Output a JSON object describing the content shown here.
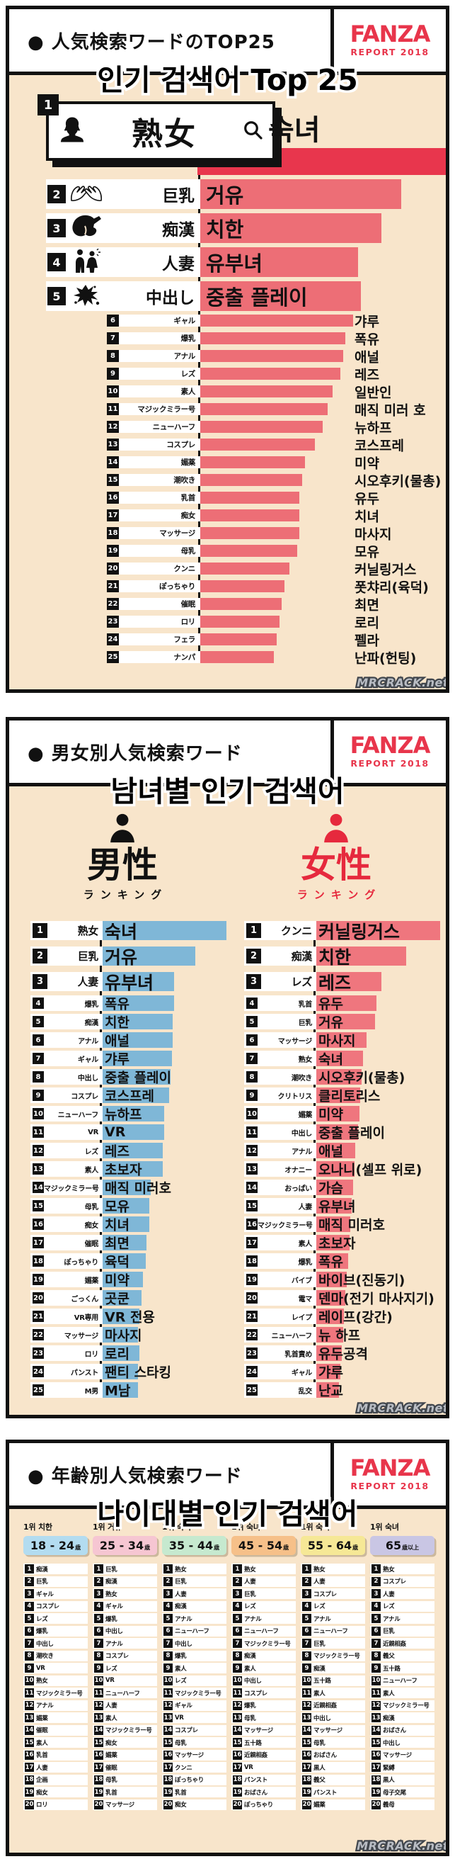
{
  "watermark": "MRCRACK.net",
  "logo": {
    "name": "FANZA",
    "report": "REPORT 2018"
  },
  "colors": {
    "panel_bg": "#f8e5cb",
    "accent_red": "#e8354b",
    "bar_salmon": "#ed6e76",
    "bar_red_dark": "#e8364d",
    "male_blue": "#7fb7d7",
    "male_blue_dark": "#3d8ec1",
    "female_red": "#ef767e",
    "female_red_dark": "#e6293d"
  },
  "panel1": {
    "header_jp": "● 人気検索ワードのTOP25",
    "title_kr": "인기 검색어 Top 25",
    "no1": {
      "rank": "1",
      "jp": "熟女",
      "kr": "숙녀"
    },
    "top_rows": [
      {
        "rank": "2",
        "jp": "巨乳",
        "kr": "거유",
        "w": 79
      },
      {
        "rank": "3",
        "jp": "痴漢",
        "kr": "치한",
        "w": 71
      },
      {
        "rank": "4",
        "jp": "人妻",
        "kr": "유부녀",
        "w": 62
      },
      {
        "rank": "5",
        "jp": "中出し",
        "kr": "중출 플레이",
        "w": 63
      }
    ],
    "rows": [
      {
        "jp": "ギャル",
        "kr": "갸루",
        "w": 60
      },
      {
        "jp": "爆乳",
        "kr": "폭유",
        "w": 57
      },
      {
        "jp": "アナル",
        "kr": "애널",
        "w": 56
      },
      {
        "jp": "レズ",
        "kr": "레즈",
        "w": 55
      },
      {
        "jp": "素人",
        "kr": "일반인",
        "w": 52
      },
      {
        "jp": "マジックミラー号",
        "kr": "매직 미러 호",
        "w": 50
      },
      {
        "jp": "ニューハーフ",
        "kr": "뉴하프",
        "w": 48
      },
      {
        "jp": "コスプレ",
        "kr": "코스프레",
        "w": 45
      },
      {
        "jp": "媚薬",
        "kr": "미약",
        "w": 41
      },
      {
        "jp": "潮吹き",
        "kr": "시오후키(물총)",
        "w": 40
      },
      {
        "jp": "乳首",
        "kr": "유두",
        "w": 39
      },
      {
        "jp": "痴女",
        "kr": "치녀",
        "w": 39
      },
      {
        "jp": "マッサージ",
        "kr": "마사지",
        "w": 39
      },
      {
        "jp": "母乳",
        "kr": "모유",
        "w": 38
      },
      {
        "jp": "クンニ",
        "kr": "커닐링거스",
        "w": 35
      },
      {
        "jp": "ぽっちゃり",
        "kr": "폿챠리(육덕)",
        "w": 33
      },
      {
        "jp": "催眠",
        "kr": "최면",
        "w": 32
      },
      {
        "jp": "ロリ",
        "kr": "로리",
        "w": 31
      },
      {
        "jp": "フェラ",
        "kr": "펠라",
        "w": 30
      },
      {
        "jp": "ナンパ",
        "kr": "난파(헌팅)",
        "w": 29
      }
    ]
  },
  "panel2": {
    "header_jp": "● 男女別人気検索ワード",
    "title_kr": "남녀별 인기 검색어",
    "male": {
      "label": "男性",
      "sub": "ランキング",
      "top_rows": [
        {
          "jp": "熟女",
          "kr": "숙녀",
          "w": 100
        },
        {
          "jp": "巨乳",
          "kr": "거유",
          "w": 75
        },
        {
          "jp": "人妻",
          "kr": "유부녀",
          "w": 58
        }
      ],
      "rows": [
        {
          "jp": "爆乳",
          "kr": "폭유",
          "w": 58
        },
        {
          "jp": "痴漢",
          "kr": "치한",
          "w": 57
        },
        {
          "jp": "アナル",
          "kr": "애널",
          "w": 57
        },
        {
          "jp": "ギャル",
          "kr": "갸루",
          "w": 56
        },
        {
          "jp": "中出し",
          "kr": "중출 플레이",
          "w": 55
        },
        {
          "jp": "コスプレ",
          "kr": "코스프레",
          "w": 54
        },
        {
          "jp": "ニューハーフ",
          "kr": "뉴하프",
          "w": 50
        },
        {
          "jp": "VR",
          "kr": "VR",
          "w": 50
        },
        {
          "jp": "レズ",
          "kr": "레즈",
          "w": 49
        },
        {
          "jp": "素人",
          "kr": "초보자",
          "w": 49
        },
        {
          "jp": "マジックミラー号",
          "kr": "매직 미러호",
          "w": 39
        },
        {
          "jp": "母乳",
          "kr": "모유",
          "w": 38
        },
        {
          "jp": "痴女",
          "kr": "치녀",
          "w": 38
        },
        {
          "jp": "催眠",
          "kr": "최면",
          "w": 36
        },
        {
          "jp": "ぽっちゃり",
          "kr": "육덕",
          "w": 35
        },
        {
          "jp": "媚薬",
          "kr": "미약",
          "w": 33
        },
        {
          "jp": "ごっくん",
          "kr": "곳쿤",
          "w": 32
        },
        {
          "jp": "VR専用",
          "kr": "VR 전용",
          "w": 30
        },
        {
          "jp": "マッサージ",
          "kr": "마사지",
          "w": 29
        },
        {
          "jp": "ロリ",
          "kr": "로리",
          "w": 30
        },
        {
          "jp": "パンスト",
          "kr": "팬티 스타킹",
          "w": 29
        },
        {
          "jp": "M男",
          "kr": "M남",
          "w": 29
        }
      ]
    },
    "female": {
      "label": "女性",
      "sub": "ランキング",
      "top_rows": [
        {
          "jp": "クンニ",
          "kr": "커닐링거스",
          "w": 100
        },
        {
          "jp": "痴漢",
          "kr": "치한",
          "w": 73
        },
        {
          "jp": "レズ",
          "kr": "레즈",
          "w": 53
        }
      ],
      "rows": [
        {
          "jp": "乳首",
          "kr": "유두",
          "w": 49
        },
        {
          "jp": "巨乳",
          "kr": "거유",
          "w": 48
        },
        {
          "jp": "マッサージ",
          "kr": "마사지",
          "w": 41
        },
        {
          "jp": "熟女",
          "kr": "숙녀",
          "w": 38
        },
        {
          "jp": "潮吹き",
          "kr": "시오후키(물총)",
          "w": 37
        },
        {
          "jp": "クリトリス",
          "kr": "클리토리스",
          "w": 36
        },
        {
          "jp": "媚薬",
          "kr": "미약",
          "w": 35
        },
        {
          "jp": "中出し",
          "kr": "중출 플레이",
          "w": 34
        },
        {
          "jp": "アナル",
          "kr": "애널",
          "w": 32
        },
        {
          "jp": "オナニー",
          "kr": "오나니(셀프 위로)",
          "w": 31
        },
        {
          "jp": "おっぱい",
          "kr": "가슴",
          "w": 30
        },
        {
          "jp": "人妻",
          "kr": "유부녀",
          "w": 29
        },
        {
          "jp": "マジックミラー号",
          "kr": "매직 미러호",
          "w": 28
        },
        {
          "jp": "素人",
          "kr": "초보자",
          "w": 27
        },
        {
          "jp": "爆乳",
          "kr": "폭유",
          "w": 26
        },
        {
          "jp": "バイブ",
          "kr": "바이브(진동기)",
          "w": 25
        },
        {
          "jp": "電マ",
          "kr": "덴마(전기 마사지기)",
          "w": 24
        },
        {
          "jp": "レイプ",
          "kr": "레이프(강간)",
          "w": 23
        },
        {
          "jp": "ニューハーフ",
          "kr": "뉴 하프",
          "w": 22
        },
        {
          "jp": "乳首責め",
          "kr": "유두공격",
          "w": 21
        },
        {
          "jp": "ギャル",
          "kr": "갸루",
          "w": 20
        },
        {
          "jp": "乱交",
          "kr": "난교",
          "w": 19
        }
      ]
    }
  },
  "panel3": {
    "header_jp": "● 年齢別人気検索ワード",
    "title_kr": "나이대별 인기 검색어",
    "cols": [
      {
        "top": "1위 치한",
        "age": "18 - 24",
        "suffix": "歳",
        "color": "#b3dcf0",
        "items": [
          "痴漢",
          "巨乳",
          "ギャル",
          "コスプレ",
          "レズ",
          "爆乳",
          "中出し",
          "潮吹き",
          "VR",
          "熟女",
          "マジックミラー号",
          "アナル",
          "媚薬",
          "催眠",
          "素人",
          "乳首",
          "人妻",
          "企画",
          "痴女",
          "ロリ"
        ]
      },
      {
        "top": "1위 거유",
        "age": "25 - 34",
        "suffix": "歳",
        "color": "#f6c6d2",
        "items": [
          "巨乳",
          "痴漢",
          "熟女",
          "ギャル",
          "爆乳",
          "中出し",
          "アナル",
          "コスプレ",
          "レズ",
          "VR",
          "ニューハーフ",
          "人妻",
          "素人",
          "マジックミラー号",
          "痴女",
          "媚薬",
          "催眠",
          "母乳",
          "乳首",
          "マッサージ"
        ]
      },
      {
        "top": "1위 숙녀",
        "age": "35 - 44",
        "suffix": "歳",
        "color": "#c6e9cf",
        "items": [
          "熟女",
          "巨乳",
          "人妻",
          "痴漢",
          "アナル",
          "ニューハーフ",
          "中出し",
          "爆乳",
          "素人",
          "レズ",
          "マジックミラー号",
          "ギャル",
          "VR",
          "コスプレ",
          "母乳",
          "マッサージ",
          "クンニ",
          "ぽっちゃり",
          "乳首",
          "痴女"
        ]
      },
      {
        "top": "1위 숙녀",
        "age": "45 - 54",
        "suffix": "歳",
        "color": "#f6c089",
        "items": [
          "熟女",
          "人妻",
          "巨乳",
          "レズ",
          "アナル",
          "ニューハーフ",
          "マジックミラー号",
          "痴漢",
          "素人",
          "中出し",
          "コスプレ",
          "爆乳",
          "母乳",
          "マッサージ",
          "五十路",
          "近親相姦",
          "VR",
          "パンスト",
          "おばさん",
          "ぽっちゃり"
        ]
      },
      {
        "top": "1위 숙녀",
        "age": "55 - 64",
        "suffix": "歳",
        "color": "#f6e896",
        "items": [
          "熟女",
          "人妻",
          "コスプレ",
          "レズ",
          "アナル",
          "ニューハーフ",
          "巨乳",
          "マジックミラー号",
          "痴漢",
          "五十路",
          "素人",
          "近親相姦",
          "中出し",
          "マッサージ",
          "母乳",
          "おばさん",
          "黒人",
          "義父",
          "パンスト",
          "媚薬"
        ]
      },
      {
        "top": "1위 숙녀",
        "age": "65",
        "suffix": "歳以上",
        "color": "#c9c6e4",
        "items": [
          "熟女",
          "コスプレ",
          "人妻",
          "レズ",
          "アナル",
          "巨乳",
          "近親相姦",
          "義父",
          "五十路",
          "ニューハーフ",
          "素人",
          "マジックミラー号",
          "痴漢",
          "おばさん",
          "中出し",
          "マッサージ",
          "緊縛",
          "黒人",
          "母子交尾",
          "義母"
        ]
      }
    ]
  },
  "chart_data": [
    {
      "type": "bar",
      "title": "人気検索ワードのTOP25",
      "subtitle": "인기 검색어 Top 25",
      "orientation": "horizontal",
      "legend": "none",
      "categories": [
        "熟女",
        "巨乳",
        "痴漢",
        "人妻",
        "中出し",
        "ギャル",
        "爆乳",
        "アナル",
        "レズ",
        "素人",
        "マジックミラー号",
        "ニューハーフ",
        "コスプレ",
        "媚薬",
        "潮吹き",
        "乳首",
        "痴女",
        "マッサージ",
        "母乳",
        "クンニ",
        "ぽっちゃり",
        "催眠",
        "ロリ",
        "フェラ",
        "ナンパ"
      ],
      "values": [
        100,
        79,
        71,
        62,
        63,
        60,
        57,
        56,
        55,
        52,
        50,
        48,
        45,
        41,
        40,
        39,
        39,
        39,
        38,
        35,
        33,
        32,
        31,
        30,
        29
      ],
      "note": "values are relative bar lengths in percent of the longest bar; no numeric axis is shown"
    },
    {
      "type": "bar",
      "title": "男性 ランキング",
      "orientation": "horizontal",
      "legend": "none",
      "categories": [
        "熟女",
        "巨乳",
        "人妻",
        "爆乳",
        "痴漢",
        "アナル",
        "ギャル",
        "中出し",
        "コスプレ",
        "ニューハーフ",
        "VR",
        "レズ",
        "素人",
        "マジックミラー号",
        "母乳",
        "痴女",
        "催眠",
        "ぽっちゃり",
        "媚薬",
        "ごっくん",
        "VR専用",
        "マッサージ",
        "ロリ",
        "パンスト",
        "M男"
      ],
      "values": [
        100,
        75,
        58,
        58,
        57,
        57,
        56,
        55,
        54,
        50,
        50,
        49,
        49,
        39,
        38,
        38,
        36,
        35,
        33,
        32,
        30,
        29,
        30,
        29,
        29
      ],
      "note": "values are relative bar lengths in percent; no numeric axis is shown"
    },
    {
      "type": "bar",
      "title": "女性 ランキング",
      "orientation": "horizontal",
      "legend": "none",
      "categories": [
        "クンニ",
        "痴漢",
        "レズ",
        "乳首",
        "巨乳",
        "マッサージ",
        "熟女",
        "潮吹き",
        "クリトリス",
        "媚薬",
        "中出し",
        "アナル",
        "オナニー",
        "おっぱい",
        "人妻",
        "マジックミラー号",
        "素人",
        "爆乳",
        "バイブ",
        "電マ",
        "レイプ",
        "ニューハーフ",
        "乳首責め",
        "ギャル",
        "乱交"
      ],
      "values": [
        100,
        73,
        53,
        49,
        48,
        41,
        38,
        37,
        36,
        35,
        34,
        32,
        31,
        30,
        29,
        28,
        27,
        26,
        25,
        24,
        23,
        22,
        21,
        20,
        19
      ],
      "note": "values are relative bar lengths in percent; no numeric axis is shown"
    },
    {
      "type": "table",
      "title": "年齢別人気検索ワード",
      "subtitle": "나이대별 인기 검색어",
      "columns": [
        "18-24歳",
        "25-34歳",
        "35-44歳",
        "45-54歳",
        "55-64歳",
        "65歳以上"
      ],
      "rows": [
        [
          "痴漢",
          "巨乳",
          "熟女",
          "熟女",
          "熟女",
          "熟女"
        ],
        [
          "巨乳",
          "痴漢",
          "巨乳",
          "人妻",
          "人妻",
          "コスプレ"
        ],
        [
          "ギャル",
          "熟女",
          "人妻",
          "巨乳",
          "コスプレ",
          "人妻"
        ],
        [
          "コスプレ",
          "ギャル",
          "痴漢",
          "レズ",
          "レズ",
          "レズ"
        ],
        [
          "レズ",
          "爆乳",
          "アナル",
          "アナル",
          "アナル",
          "アナル"
        ],
        [
          "爆乳",
          "中出し",
          "ニューハーフ",
          "ニューハーフ",
          "ニューハーフ",
          "巨乳"
        ],
        [
          "中出し",
          "アナル",
          "中出し",
          "マジックミラー号",
          "巨乳",
          "近親相姦"
        ],
        [
          "潮吹き",
          "コスプレ",
          "爆乳",
          "痴漢",
          "マジックミラー号",
          "義父"
        ],
        [
          "VR",
          "レズ",
          "素人",
          "素人",
          "痴漢",
          "五十路"
        ],
        [
          "熟女",
          "VR",
          "レズ",
          "中出し",
          "五十路",
          "ニューハーフ"
        ],
        [
          "マジックミラー号",
          "ニューハーフ",
          "マジックミラー号",
          "コスプレ",
          "素人",
          "素人"
        ],
        [
          "アナル",
          "人妻",
          "ギャル",
          "爆乳",
          "近親相姦",
          "マジックミラー号"
        ],
        [
          "媚薬",
          "素人",
          "VR",
          "母乳",
          "中出し",
          "痴漢"
        ],
        [
          "催眠",
          "マジックミラー号",
          "コスプレ",
          "マッサージ",
          "マッサージ",
          "おばさん"
        ],
        [
          "素人",
          "痴女",
          "母乳",
          "五十路",
          "母乳",
          "中出し"
        ],
        [
          "乳首",
          "媚薬",
          "マッサージ",
          "近親相姦",
          "おばさん",
          "マッサージ"
        ],
        [
          "人妻",
          "催眠",
          "クンニ",
          "VR",
          "黒人",
          "緊縛"
        ],
        [
          "企画",
          "母乳",
          "ぽっちゃり",
          "パンスト",
          "義父",
          "黒人"
        ],
        [
          "痴女",
          "乳首",
          "乳首",
          "おばさん",
          "パンスト",
          "母子交尾"
        ],
        [
          "ロリ",
          "マッサージ",
          "痴女",
          "ぽっちゃり",
          "媚薬",
          "義母"
        ]
      ]
    }
  ]
}
